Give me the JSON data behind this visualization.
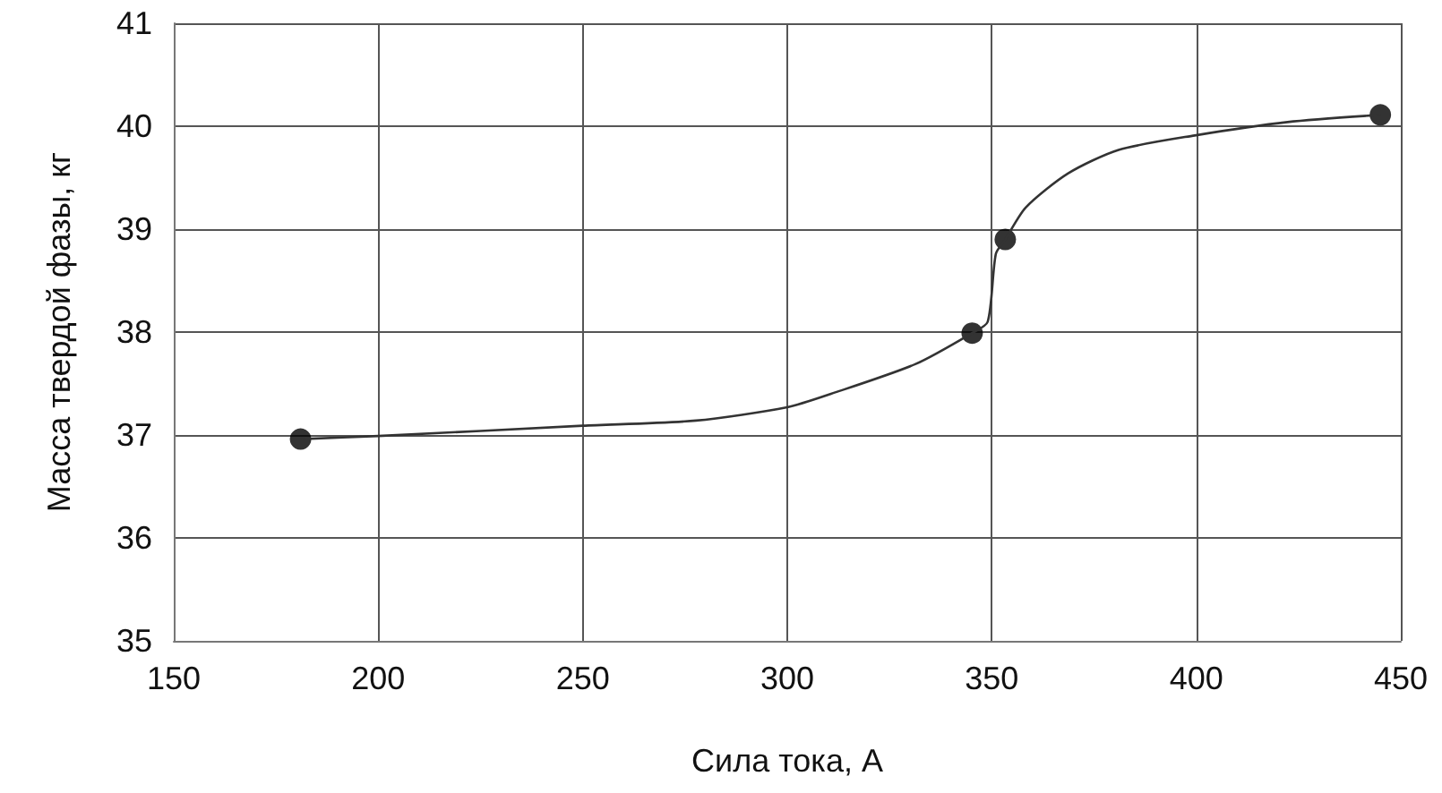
{
  "chart_data": {
    "type": "line",
    "xlabel": "Сила тока, А",
    "ylabel": "Масса твердой фазы, кг",
    "xlim": [
      150,
      450
    ],
    "xticks": [
      150,
      200,
      250,
      300,
      350,
      400,
      450
    ],
    "ylim": [
      35,
      41
    ],
    "yticks": [
      35,
      36,
      37,
      38,
      39,
      40,
      41
    ],
    "grid": true,
    "series": [
      {
        "color": "#333333",
        "marker": "none",
        "x": [
          181,
          200,
          250,
          277.7,
          300,
          310.7,
          331.4,
          345.2,
          349,
          351,
          353.3,
          358.3,
          368.6,
          381,
          399.6,
          422.3,
          445
        ],
        "values": [
          36.96,
          36.99,
          37.09,
          37.14,
          37.27,
          37.4,
          37.69,
          37.99,
          38.1,
          38.76,
          38.9,
          39.21,
          39.54,
          39.77,
          39.91,
          40.04,
          40.11
        ]
      },
      {
        "type": "scatter",
        "color": "#000000",
        "marker": "circle",
        "x": [
          181,
          345.2,
          353.3,
          445
        ],
        "values": [
          36.96,
          37.99,
          38.9,
          40.11
        ]
      }
    ]
  }
}
